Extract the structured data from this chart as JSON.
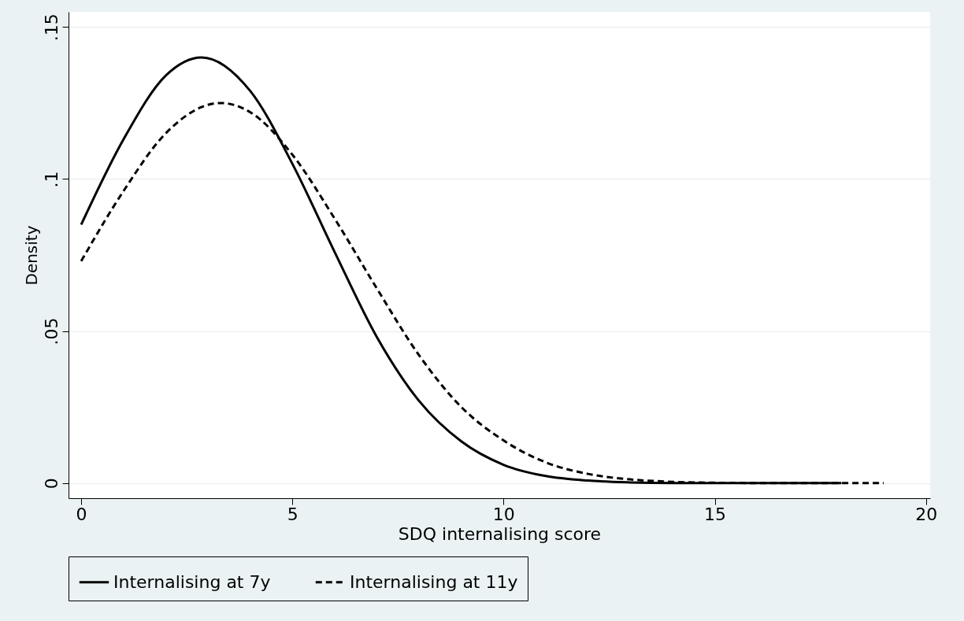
{
  "chart_data": {
    "type": "line",
    "xlabel": "SDQ internalising score",
    "ylabel": "Density",
    "xlim": [
      -0.3,
      20.1
    ],
    "ylim": [
      -0.005,
      0.155
    ],
    "xticks": [
      0,
      5,
      10,
      15,
      20
    ],
    "yticks": [
      0,
      {
        "value": 0.05,
        "label": ".05"
      },
      {
        "value": 0.1,
        "label": ".1"
      },
      {
        "value": 0.15,
        "label": ".15"
      }
    ],
    "grid": "y",
    "legend": "bottom",
    "marker": "none",
    "series": [
      {
        "name": "Internalising at 7y",
        "color": "#000000",
        "line_style": "solid",
        "x": [
          0,
          1,
          2,
          2.85,
          4,
          5,
          6,
          7,
          8,
          9,
          10,
          11,
          12,
          13,
          14,
          15,
          16,
          17,
          18
        ],
        "values": [
          0.085,
          0.113,
          0.134,
          0.14,
          0.129,
          0.105,
          0.076,
          0.048,
          0.027,
          0.0137,
          0.006,
          0.0023,
          0.0008,
          0.0002,
          0,
          0,
          0,
          0,
          0
        ]
      },
      {
        "name": "Internalising at 11y",
        "color": "#000000",
        "line_style": "dashed",
        "x": [
          0,
          1,
          2,
          3.3,
          4,
          5,
          6,
          7,
          8,
          9,
          10,
          11,
          12,
          13,
          14,
          15,
          16,
          17,
          18,
          19
        ],
        "values": [
          0.073,
          0.096,
          0.115,
          0.125,
          0.122,
          0.108,
          0.087,
          0.064,
          0.042,
          0.025,
          0.014,
          0.0068,
          0.003,
          0.0012,
          0.0004,
          0.0001,
          0,
          0,
          0,
          0
        ]
      }
    ]
  }
}
